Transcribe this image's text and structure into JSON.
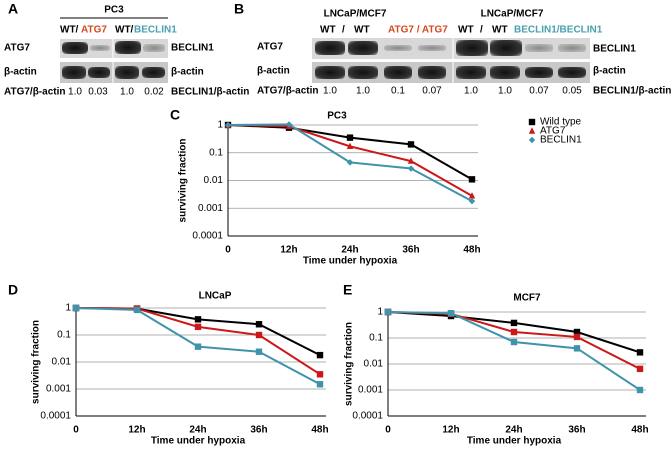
{
  "blots": {
    "A": {
      "letter": "A",
      "cell_line": "PC3",
      "lanes": [
        "WT/",
        "ATG7",
        "WT/",
        "BECLIN1"
      ],
      "rows_left": [
        "ATG7",
        "β-actin",
        "ATG7/β-actin"
      ],
      "rows_right": [
        "BECLIN1",
        "β-actin",
        "BECLIN1/β-actin"
      ],
      "ratios": [
        "1.0",
        "0.03",
        "1.0",
        "0.02"
      ]
    },
    "B": {
      "letter": "B",
      "cell_lines": [
        "LNCaP/MCF7",
        "LNCaP/MCF7"
      ],
      "lanes": [
        "WT",
        "/",
        "WT",
        "ATG7 / ATG7",
        "WT",
        "/",
        "WT",
        "BECLIN1/BECLIN1"
      ],
      "rows_left": [
        "ATG7",
        "β-actin",
        "ATG7/β-actin"
      ],
      "rows_right": [
        "BECLIN1",
        "β-actin",
        "BECLIN1/β-actin"
      ],
      "ratios": [
        "1.0",
        "1.0",
        "0.1",
        "0.07",
        "1.0",
        "1.0",
        "0.07",
        "0.05"
      ]
    }
  },
  "chart_data": [
    {
      "type": "line",
      "panel": "C",
      "title": "PC3",
      "y_label": "surviving fraction",
      "x_label": "Time under hypoxia",
      "categories": [
        "0",
        "12h",
        "24h",
        "36h",
        "48h"
      ],
      "log_scale": true,
      "grid": true,
      "legend": "right",
      "ylim": [
        0.0001,
        1
      ],
      "yticks": [
        0.0001,
        0.001,
        0.01,
        0.1,
        1
      ],
      "series": [
        {
          "name": "Wild type",
          "color": "#000000",
          "marker": "square",
          "values": [
            1,
            0.8,
            0.35,
            0.2,
            0.011
          ]
        },
        {
          "name": "ATG7",
          "color": "#cc1818",
          "marker": "triangle",
          "values": [
            1,
            0.9,
            0.17,
            0.05,
            0.0028
          ]
        },
        {
          "name": "BECLIN1",
          "color": "#3f93ab",
          "marker": "diamond",
          "values": [
            1,
            1.05,
            0.045,
            0.027,
            0.0018
          ]
        }
      ]
    },
    {
      "type": "line",
      "panel": "D",
      "title": "LNCaP",
      "y_label": "surviving fraction",
      "x_label": "Time under hypoxia",
      "categories": [
        "0",
        "12h",
        "24h",
        "36h",
        "48h"
      ],
      "log_scale": true,
      "grid": true,
      "ylim": [
        0.0001,
        1
      ],
      "yticks": [
        0.0001,
        0.001,
        0.01,
        0.1,
        1
      ],
      "series": [
        {
          "color": "#000000",
          "marker": "square",
          "values": [
            1,
            0.95,
            0.38,
            0.25,
            0.018
          ]
        },
        {
          "color": "#cc1818",
          "marker": "square",
          "values": [
            1,
            0.95,
            0.2,
            0.1,
            0.0035
          ]
        },
        {
          "color": "#3f93ab",
          "marker": "square",
          "values": [
            1,
            0.85,
            0.037,
            0.024,
            0.0015
          ]
        }
      ]
    },
    {
      "type": "line",
      "panel": "E",
      "title": "MCF7",
      "y_label": "surviving fraction",
      "x_label": "Time under hypoxia",
      "categories": [
        "0",
        "12h",
        "24h",
        "36h",
        "48h"
      ],
      "log_scale": true,
      "grid": true,
      "ylim": [
        0.0001,
        1
      ],
      "yticks": [
        0.0001,
        0.001,
        0.01,
        0.1,
        1
      ],
      "series": [
        {
          "color": "#000000",
          "marker": "square",
          "values": [
            1,
            0.7,
            0.38,
            0.17,
            0.028
          ]
        },
        {
          "color": "#cc1818",
          "marker": "square",
          "values": [
            1,
            0.85,
            0.17,
            0.11,
            0.0065
          ]
        },
        {
          "color": "#3f93ab",
          "marker": "square",
          "values": [
            1,
            0.9,
            0.07,
            0.04,
            0.001
          ]
        }
      ]
    }
  ]
}
